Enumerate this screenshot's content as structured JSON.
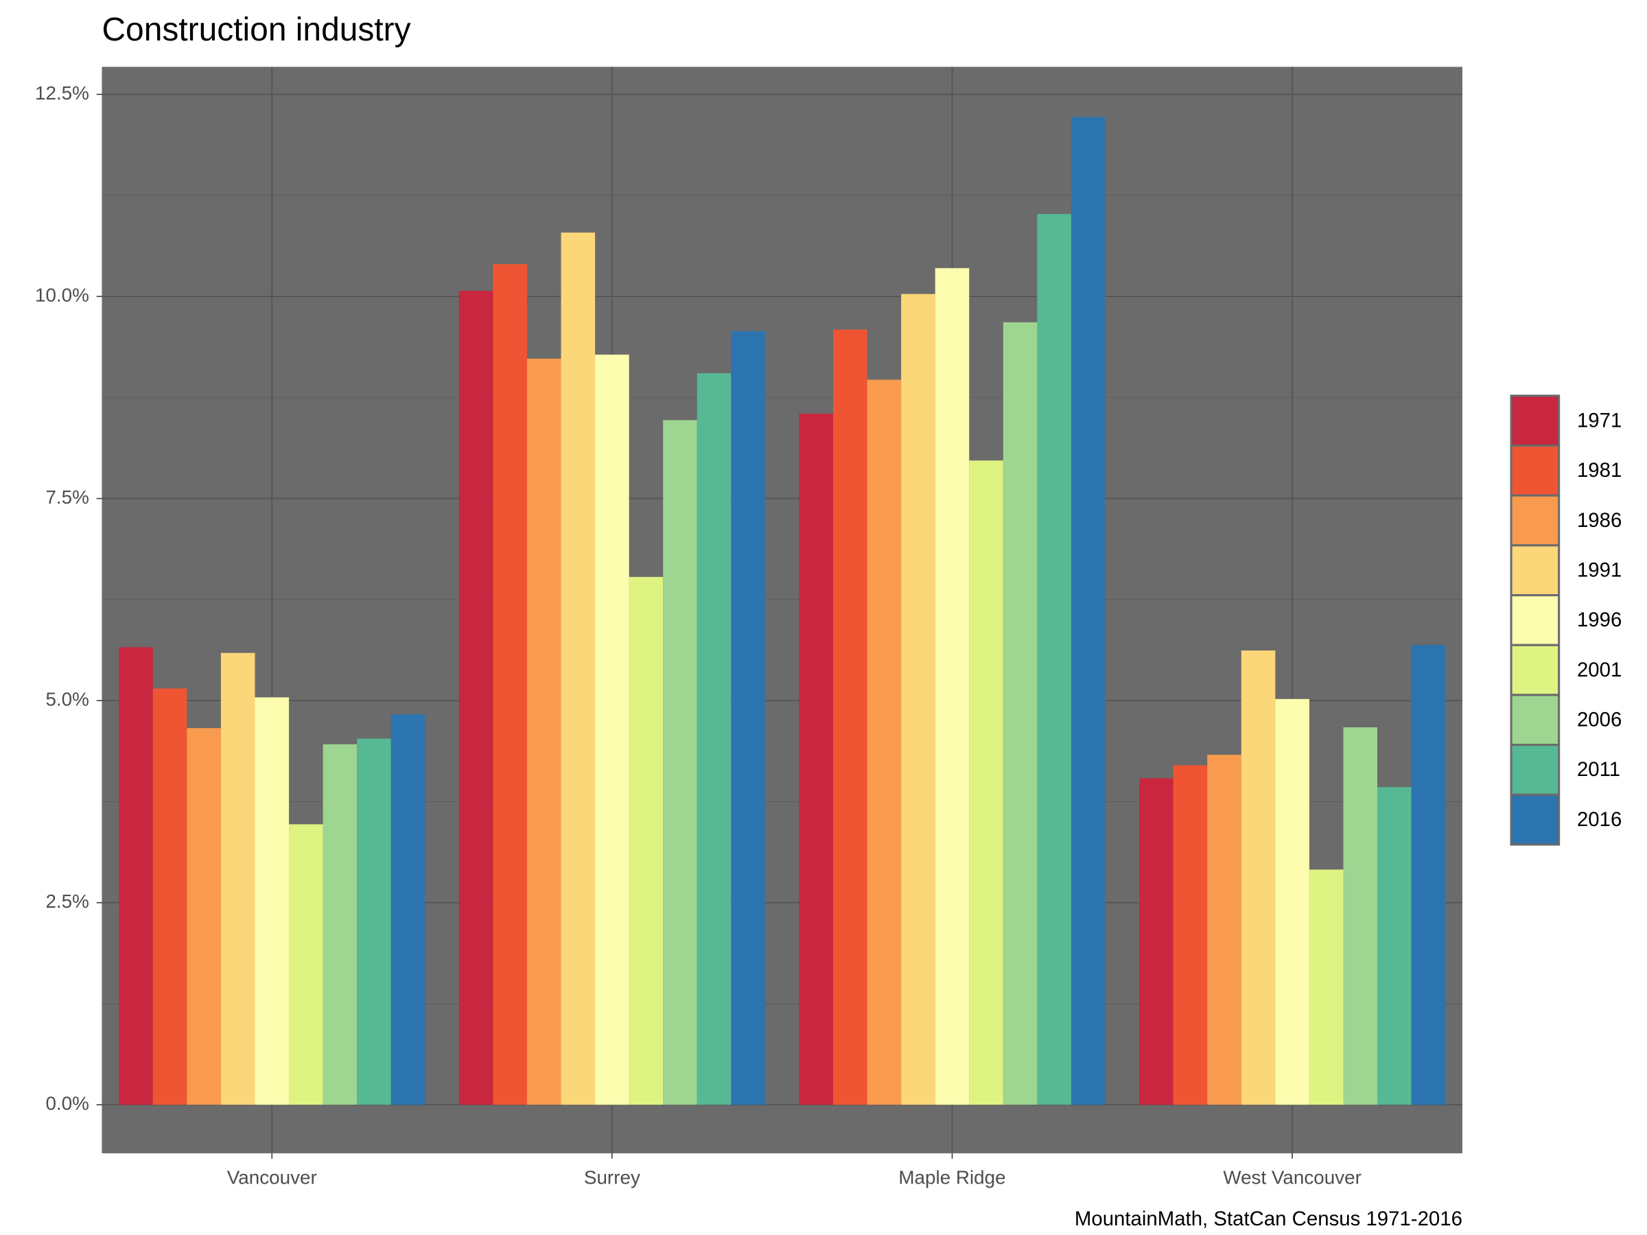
{
  "chart_data": {
    "type": "bar",
    "title": "Construction industry",
    "caption": "MountainMath, StatCan Census 1971-2016",
    "categories": [
      "Vancouver",
      "Surrey",
      "Maple Ridge",
      "West Vancouver"
    ],
    "series": [
      {
        "name": "1971",
        "color": "#c8273f",
        "values": [
          5.66,
          10.07,
          8.55,
          4.04
        ]
      },
      {
        "name": "1981",
        "color": "#ef5533",
        "values": [
          5.15,
          10.4,
          9.59,
          4.2
        ]
      },
      {
        "name": "1986",
        "color": "#f99b4e",
        "values": [
          4.66,
          9.23,
          8.97,
          4.33
        ]
      },
      {
        "name": "1991",
        "color": "#fbd77a",
        "values": [
          5.59,
          10.79,
          10.03,
          5.62
        ]
      },
      {
        "name": "1996",
        "color": "#fdfdb0",
        "values": [
          5.04,
          9.28,
          10.35,
          5.02
        ]
      },
      {
        "name": "2001",
        "color": "#dff383",
        "values": [
          3.47,
          6.53,
          7.97,
          2.91
        ]
      },
      {
        "name": "2006",
        "color": "#9ed591",
        "values": [
          4.46,
          8.47,
          9.68,
          4.67
        ]
      },
      {
        "name": "2011",
        "color": "#57b894",
        "values": [
          4.53,
          9.05,
          11.02,
          3.93
        ]
      },
      {
        "name": "2016",
        "color": "#2c74b0",
        "values": [
          4.83,
          9.57,
          12.22,
          5.69
        ]
      }
    ],
    "ylim": [
      -0.6,
      12.84
    ],
    "yticks": [
      {
        "value": 0,
        "label": "0.0%"
      },
      {
        "value": 2.5,
        "label": "2.5%"
      },
      {
        "value": 5,
        "label": "5.0%"
      },
      {
        "value": 7.5,
        "label": "7.5%"
      },
      {
        "value": 10,
        "label": "10.0%"
      },
      {
        "value": 12.5,
        "label": "12.5%"
      }
    ],
    "grid": true,
    "legend": "right"
  }
}
